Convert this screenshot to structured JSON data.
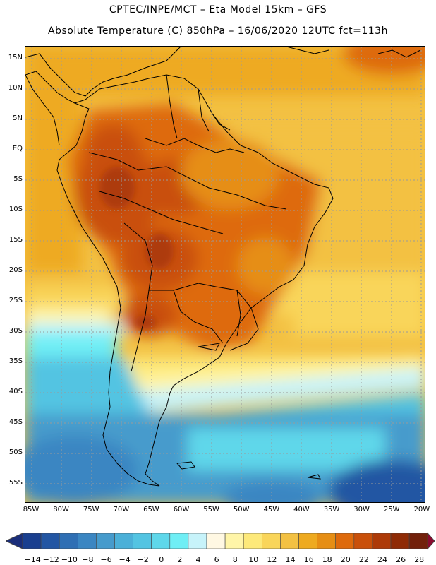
{
  "header": {
    "line1": "CPTEC/INPE/MCT –  Eta Model 15km – GFS",
    "line2": "Absolute Temperature (C) 850hPa – 16/06/2020 12UTC fct=113h"
  },
  "map": {
    "lat_labels": [
      "15N",
      "10N",
      "5N",
      "EQ",
      "5S",
      "10S",
      "15S",
      "20S",
      "25S",
      "30S",
      "35S",
      "40S",
      "45S",
      "50S",
      "55S"
    ],
    "lon_labels": [
      "85W",
      "80W",
      "75W",
      "70W",
      "65W",
      "60W",
      "55W",
      "50W",
      "45W",
      "40W",
      "35W",
      "30W",
      "25W",
      "20W"
    ]
  },
  "colorbar": {
    "labels": [
      "-14",
      "-12",
      "-10",
      "-8",
      "-6",
      "-4",
      "-2",
      "0",
      "2",
      "4",
      "6",
      "8",
      "10",
      "12",
      "14",
      "16",
      "18",
      "20",
      "22",
      "24",
      "26",
      "28"
    ],
    "colors": [
      "#1a3f8f",
      "#2356a3",
      "#2f6fb4",
      "#3b86c2",
      "#469bcc",
      "#4bb0d8",
      "#53c4e2",
      "#5ed7ea",
      "#6feef5",
      "#c7f3fa",
      "#fff8e3",
      "#fff5a8",
      "#fde97a",
      "#f9d55a",
      "#f3c143",
      "#eeaa20",
      "#e68e14",
      "#de6a0c",
      "#c9500a",
      "#ad3a08",
      "#8f2b06",
      "#72200a"
    ],
    "low_arrow": "#1b2e7a",
    "high_arrow": "#8a0a2e"
  }
}
